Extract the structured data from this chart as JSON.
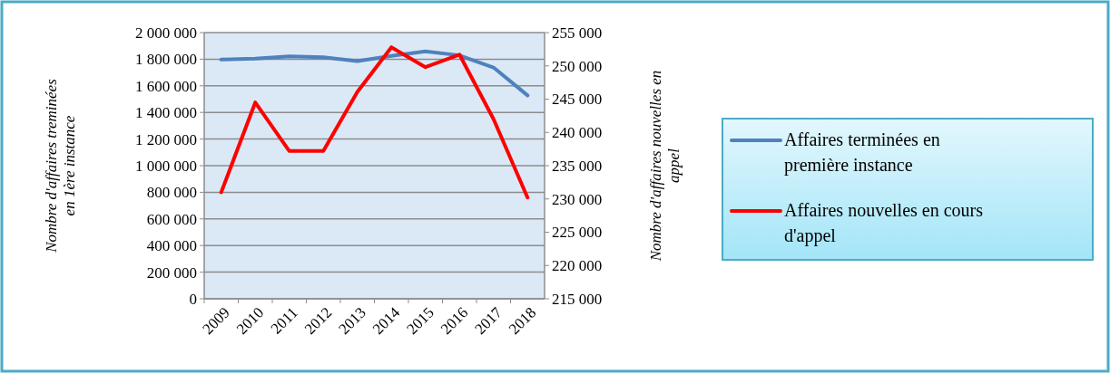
{
  "chart_data": {
    "type": "line",
    "categories": [
      "2009",
      "2010",
      "2011",
      "2012",
      "2013",
      "2014",
      "2015",
      "2016",
      "2017",
      "2018"
    ],
    "ylabel": "Nombre d'affaires treminées en 1ère instance",
    "y2label": "Nombre d'affaires nouvelles en appel",
    "ylim": [
      0,
      2000000
    ],
    "yticks": [
      {
        "value": 0,
        "label": "0"
      },
      {
        "value": 200000,
        "label": "200 000"
      },
      {
        "value": 400000,
        "label": "400 000"
      },
      {
        "value": 600000,
        "label": "600 000"
      },
      {
        "value": 800000,
        "label": "800 000"
      },
      {
        "value": 1000000,
        "label": "1 000 000"
      },
      {
        "value": 1200000,
        "label": "1 200 000"
      },
      {
        "value": 1400000,
        "label": "1 400 000"
      },
      {
        "value": 1600000,
        "label": "1 600 000"
      },
      {
        "value": 1800000,
        "label": "1 800 000"
      },
      {
        "value": 2000000,
        "label": "2 000 000"
      }
    ],
    "y2lim": [
      215000,
      255000
    ],
    "y2ticks": [
      {
        "value": 215000,
        "label": "215 000"
      },
      {
        "value": 220000,
        "label": "220 000"
      },
      {
        "value": 225000,
        "label": "225 000"
      },
      {
        "value": 230000,
        "label": "230 000"
      },
      {
        "value": 235000,
        "label": "235 000"
      },
      {
        "value": 240000,
        "label": "240 000"
      },
      {
        "value": 245000,
        "label": "245 000"
      },
      {
        "value": 250000,
        "label": "250 000"
      },
      {
        "value": 255000,
        "label": "255 000"
      }
    ],
    "grid": "y",
    "legend": "right",
    "marker": "none",
    "series": [
      {
        "name": "Affaires terminées en première instance",
        "color": "#4f81bd",
        "values": [
          1797000,
          1804000,
          1822000,
          1815000,
          1786000,
          1825000,
          1859000,
          1829000,
          1738000,
          1528000
        ]
      },
      {
        "name": "Affaires nouvelles en cours d'appel",
        "color": "#ff0000",
        "axis": "y2",
        "values": [
          231000,
          244500,
          237200,
          237200,
          246100,
          252800,
          249800,
          251700,
          242000,
          230200
        ]
      }
    ]
  }
}
